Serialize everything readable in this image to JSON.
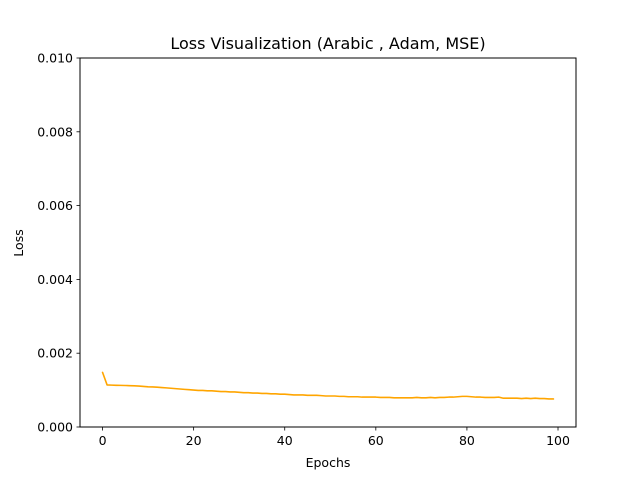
{
  "colors": {
    "series": "#FFA500",
    "axes": "#000000",
    "background": "#ffffff"
  },
  "chart_data": {
    "type": "line",
    "title": "Loss Visualization (Arabic , Adam, MSE)",
    "xlabel": "Epochs",
    "ylabel": "Loss",
    "xlim": [
      -4.95,
      103.95
    ],
    "ylim": [
      0,
      0.01
    ],
    "grid": false,
    "legend": "none",
    "xticks": [
      0,
      20,
      40,
      60,
      80,
      100
    ],
    "xtick_labels": [
      "0",
      "20",
      "40",
      "60",
      "80",
      "100"
    ],
    "yticks": [
      0,
      0.002,
      0.004,
      0.006,
      0.008,
      0.01
    ],
    "ytick_labels": [
      "0.000",
      "0.002",
      "0.004",
      "0.006",
      "0.008",
      "0.010"
    ],
    "series": [
      {
        "x": [
          0,
          1,
          2,
          3,
          4,
          5,
          6,
          7,
          8,
          9,
          10,
          11,
          12,
          13,
          14,
          15,
          16,
          17,
          18,
          19,
          20,
          21,
          22,
          23,
          24,
          25,
          26,
          27,
          28,
          29,
          30,
          31,
          32,
          33,
          34,
          35,
          36,
          37,
          38,
          39,
          40,
          41,
          42,
          43,
          44,
          45,
          46,
          47,
          48,
          49,
          50,
          51,
          52,
          53,
          54,
          55,
          56,
          57,
          58,
          59,
          60,
          61,
          62,
          63,
          64,
          65,
          66,
          67,
          68,
          69,
          70,
          71,
          72,
          73,
          74,
          75,
          76,
          77,
          78,
          79,
          80,
          81,
          82,
          83,
          84,
          85,
          86,
          87,
          88,
          89,
          90,
          91,
          92,
          93,
          94,
          95,
          96,
          97,
          98,
          99
        ],
        "values": [
          0.00148,
          0.00114,
          0.001135,
          0.00113,
          0.001128,
          0.001125,
          0.00112,
          0.001115,
          0.00111,
          0.0011,
          0.00109,
          0.001085,
          0.00108,
          0.00107,
          0.00106,
          0.00105,
          0.00104,
          0.00103,
          0.00102,
          0.00101,
          0.001,
          0.00099,
          0.00099,
          0.00098,
          0.00098,
          0.00097,
          0.00096,
          0.00096,
          0.00095,
          0.00095,
          0.00094,
          0.00093,
          0.00093,
          0.00092,
          0.00092,
          0.00091,
          0.00091,
          0.0009,
          0.0009,
          0.00089,
          0.00089,
          0.00088,
          0.00087,
          0.00087,
          0.00087,
          0.00086,
          0.00086,
          0.00086,
          0.00085,
          0.00084,
          0.00084,
          0.00084,
          0.00083,
          0.00083,
          0.00082,
          0.00082,
          0.00082,
          0.00081,
          0.00081,
          0.00081,
          0.00081,
          0.0008,
          0.0008,
          0.0008,
          0.00079,
          0.00079,
          0.00079,
          0.00079,
          0.00079,
          0.0008,
          0.00079,
          0.00079,
          0.0008,
          0.00079,
          0.0008,
          0.0008,
          0.00081,
          0.00081,
          0.00082,
          0.00083,
          0.00083,
          0.00082,
          0.00081,
          0.00081,
          0.0008,
          0.0008,
          0.0008,
          0.00081,
          0.00078,
          0.00078,
          0.00078,
          0.00078,
          0.00077,
          0.00078,
          0.00077,
          0.00078,
          0.00077,
          0.00077,
          0.00076,
          0.00076
        ]
      }
    ]
  }
}
